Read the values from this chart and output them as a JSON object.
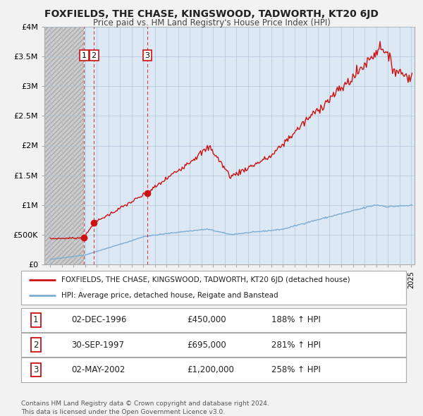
{
  "title": "FOXFIELDS, THE CHASE, KINGSWOOD, TADWORTH, KT20 6JD",
  "subtitle": "Price paid vs. HM Land Registry's House Price Index (HPI)",
  "xlim": [
    1993.5,
    2025.3
  ],
  "ylim": [
    0,
    4000000
  ],
  "yticks": [
    0,
    500000,
    1000000,
    1500000,
    2000000,
    2500000,
    3000000,
    3500000,
    4000000
  ],
  "ytick_labels": [
    "£0",
    "£500K",
    "£1M",
    "£1.5M",
    "£2M",
    "£2.5M",
    "£3M",
    "£3.5M",
    "£4M"
  ],
  "xtick_years": [
    1994,
    1995,
    1996,
    1997,
    1998,
    1999,
    2000,
    2001,
    2002,
    2003,
    2004,
    2005,
    2006,
    2007,
    2008,
    2009,
    2010,
    2011,
    2012,
    2013,
    2014,
    2015,
    2016,
    2017,
    2018,
    2019,
    2020,
    2021,
    2022,
    2023,
    2024,
    2025
  ],
  "sale_dates": [
    1996.917,
    1997.75,
    2002.33
  ],
  "sale_prices": [
    450000,
    695000,
    1200000
  ],
  "sale_labels": [
    "1",
    "2",
    "3"
  ],
  "legend_red": "FOXFIELDS, THE CHASE, KINGSWOOD, TADWORTH, KT20 6JD (detached house)",
  "legend_blue": "HPI: Average price, detached house, Reigate and Banstead",
  "table_rows": [
    [
      "1",
      "02-DEC-1996",
      "£450,000",
      "188% ↑ HPI"
    ],
    [
      "2",
      "30-SEP-1997",
      "£695,000",
      "281% ↑ HPI"
    ],
    [
      "3",
      "02-MAY-2002",
      "£1,200,000",
      "258% ↑ HPI"
    ]
  ],
  "footer": "Contains HM Land Registry data © Crown copyright and database right 2024.\nThis data is licensed under the Open Government Licence v3.0.",
  "plot_bg": "#dce9f5",
  "hatch_bg": "#c8c8c8",
  "red_color": "#cc1111",
  "blue_color": "#7aadd4",
  "grid_color": "#b0c4d8",
  "bg_color": "#f2f2f2"
}
